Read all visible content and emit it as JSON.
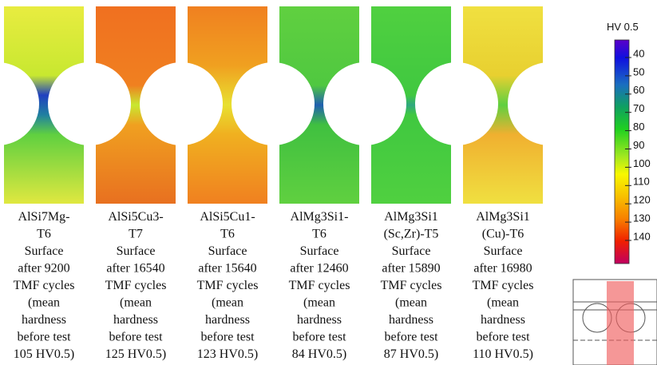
{
  "panels": [
    {
      "caption_lines": [
        "AlSi7Mg-",
        "T6",
        "Surface",
        "after 9200",
        "TMF cycles",
        "(mean",
        "hardness",
        "before test",
        "105 HV0.5)"
      ]
    },
    {
      "caption_lines": [
        "AlSi5Cu3-",
        "T7",
        "Surface",
        "after 16540",
        "TMF cycles",
        "(mean",
        "hardness",
        "before test",
        "125 HV0.5)"
      ]
    },
    {
      "caption_lines": [
        "AlSi5Cu1-",
        "T6",
        "Surface",
        "after 15640",
        "TMF cycles",
        "(mean",
        "hardness",
        "before test",
        "123 HV0.5)"
      ]
    },
    {
      "caption_lines": [
        "AlMg3Si1-",
        "T6",
        "Surface",
        "after 12460",
        "TMF cycles",
        "(mean",
        "hardness",
        "before test",
        "84 HV0.5)"
      ]
    },
    {
      "caption_lines": [
        "AlMg3Si1",
        "(Sc,Zr)-T5",
        "Surface",
        "after 15890",
        "TMF cycles",
        "(mean",
        "hardness",
        "before test",
        "87 HV0.5)"
      ]
    },
    {
      "caption_lines": [
        "AlMg3Si1",
        "(Cu)-T6",
        "Surface",
        "after 16980",
        "TMF cycles",
        "(mean",
        "hardness",
        "before test",
        "110 HV0.5)"
      ]
    }
  ],
  "colorbar": {
    "title": "HV 0.5",
    "ticks": [
      40,
      50,
      60,
      70,
      80,
      90,
      100,
      110,
      120,
      130,
      140
    ]
  }
}
